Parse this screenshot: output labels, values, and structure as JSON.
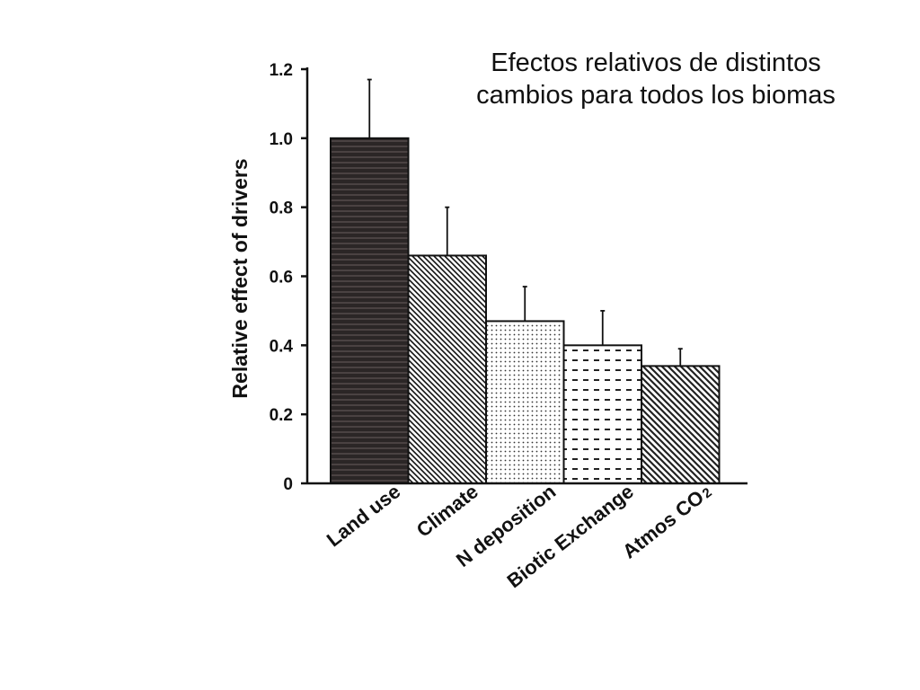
{
  "title_lines": [
    "Efectos relativos de distintos",
    "cambios para todos los biomas"
  ],
  "chart_data": {
    "type": "bar",
    "ylabel": "Relative effect of drivers",
    "ylim": [
      0,
      1.2
    ],
    "yticks": [
      "0",
      "0.2",
      "0.4",
      "0.6",
      "0.8",
      "1.0",
      "1.2"
    ],
    "categories": [
      "Land use",
      "Climate",
      "N deposition",
      "Biotic Exchange",
      "Atmos CO"
    ],
    "category_subscripts": [
      "",
      "",
      "",
      "",
      "2"
    ],
    "values": [
      1.0,
      0.66,
      0.47,
      0.4,
      0.34
    ],
    "error_upper": [
      1.17,
      0.8,
      0.57,
      0.5,
      0.39
    ],
    "fill_patterns": [
      "dark-horizontal-stripes",
      "dense-diagonal-hatch",
      "dots",
      "dashes",
      "diagonal-hatch"
    ]
  }
}
